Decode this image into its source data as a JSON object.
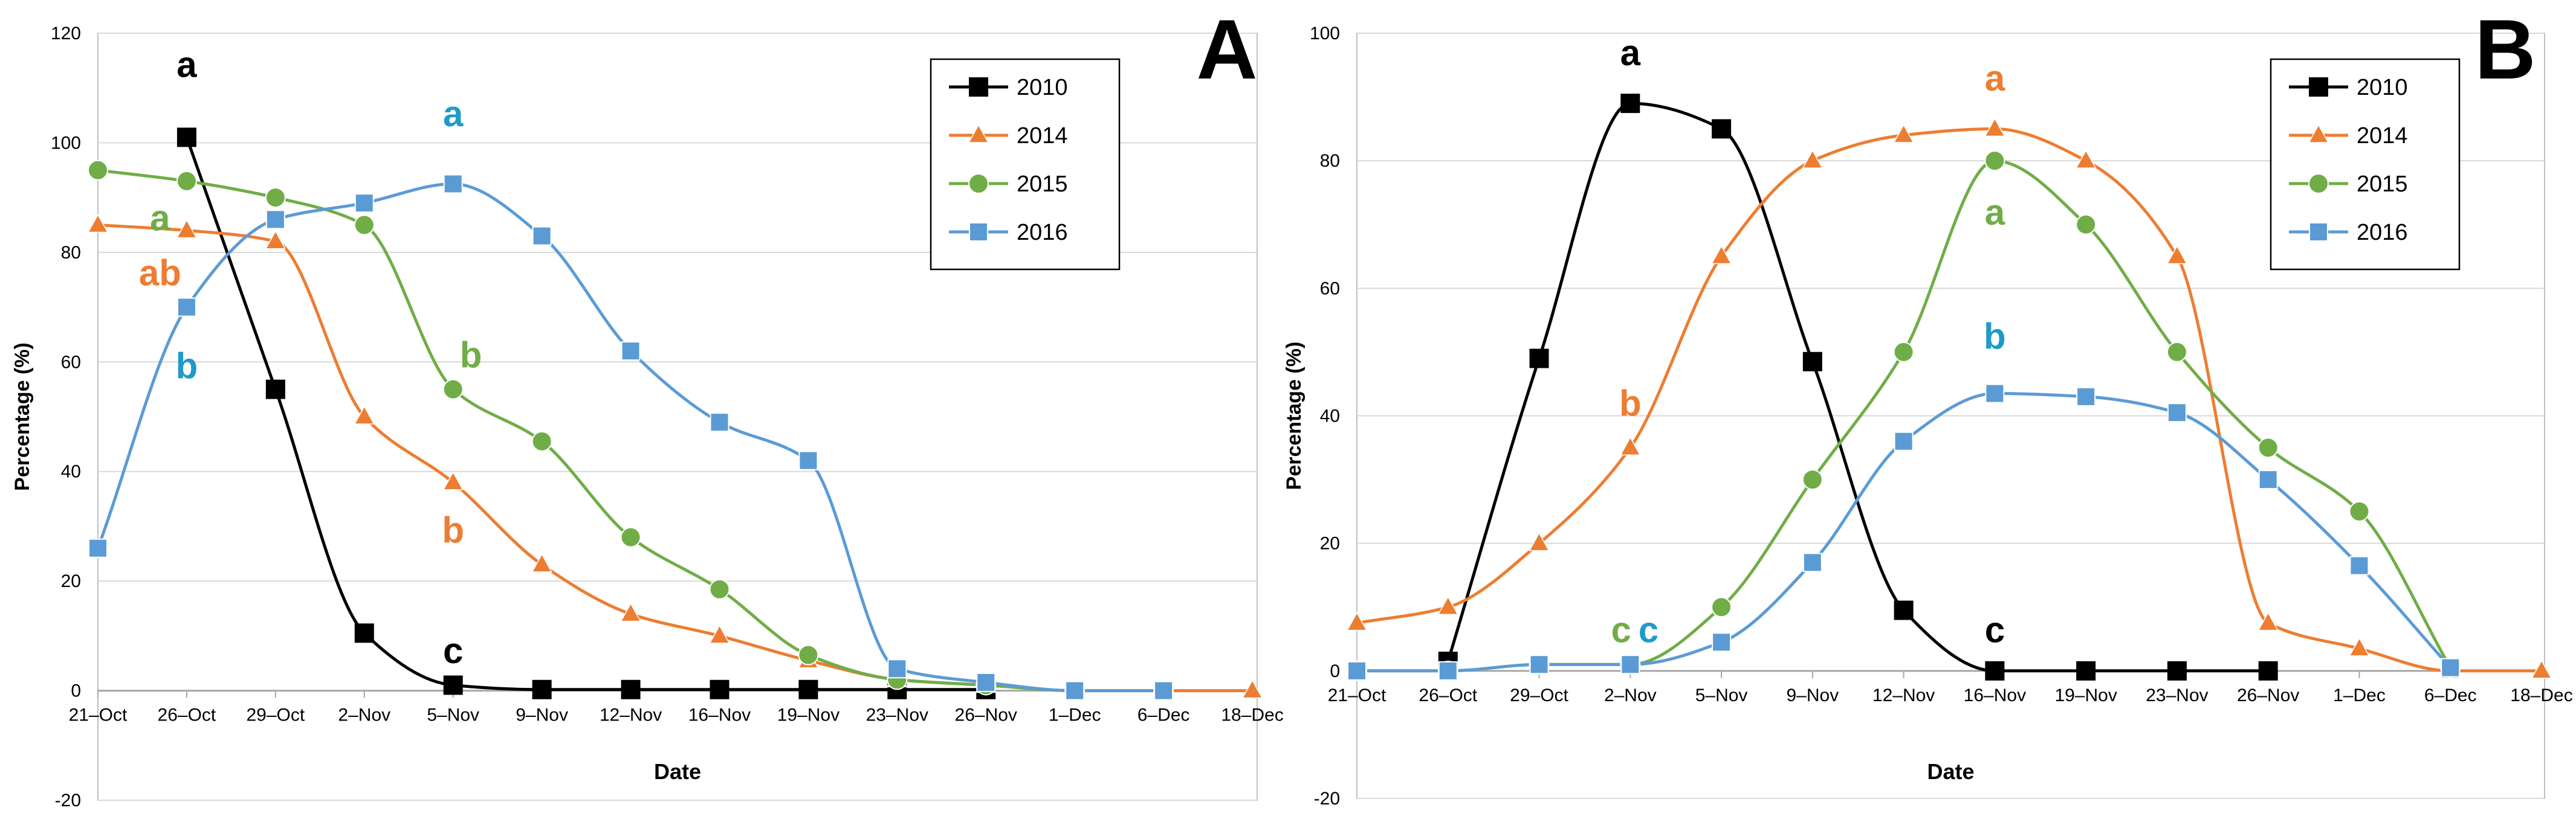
{
  "figure": {
    "panels": [
      "A",
      "B"
    ]
  },
  "chart_data": [
    {
      "type": "line",
      "panel_label": "A",
      "xlabel": "Date",
      "ylabel": "Percentage (%)",
      "ylim": [
        -20,
        120
      ],
      "yticks": [
        -20,
        0,
        20,
        40,
        60,
        80,
        100,
        120
      ],
      "categories": [
        "21–Oct",
        "26–Oct",
        "29–Oct",
        "2–Nov",
        "5–Nov",
        "9–Nov",
        "12–Nov",
        "16–Nov",
        "19–Nov",
        "23–Nov",
        "26–Nov",
        "1–Dec",
        "6–Dec",
        "18–Dec"
      ],
      "legend_position": "top-right",
      "series": [
        {
          "name": "2010",
          "color": "#000000",
          "marker": "square",
          "values": [
            null,
            101,
            55,
            10.5,
            1,
            0.2,
            0.2,
            0.2,
            0.2,
            0.2,
            0.2,
            null,
            null,
            null
          ]
        },
        {
          "name": "2014",
          "color": "#ED7D31",
          "marker": "triangle",
          "values": [
            85,
            84,
            82,
            50,
            38,
            23,
            14,
            10,
            5.5,
            2,
            1,
            0,
            0,
            0
          ]
        },
        {
          "name": "2015",
          "color": "#70AD47",
          "marker": "circle",
          "values": [
            95,
            93,
            90,
            85,
            55,
            45.5,
            28,
            18.5,
            6.5,
            2,
            1,
            0,
            0,
            null
          ]
        },
        {
          "name": "2016",
          "color": "#5B9BD5",
          "marker": "square",
          "values": [
            26,
            70,
            86,
            89,
            92.5,
            83,
            62,
            49,
            42,
            4,
            1.5,
            0,
            0,
            null
          ]
        }
      ],
      "annotations": [
        {
          "text": "a",
          "series": "2010",
          "x_index": 1,
          "y": 112
        },
        {
          "text": "c",
          "series": "2010",
          "x_index": 4,
          "y": 5
        },
        {
          "text": "a",
          "series": "2016",
          "x_index": 4,
          "y": 103
        },
        {
          "text": "b",
          "series": "2016",
          "x_index": 1,
          "y": 57
        },
        {
          "text": "a",
          "series": "2015",
          "x_index": 0.7,
          "y": 84
        },
        {
          "text": "b",
          "series": "2015",
          "x_index": 4.2,
          "y": 59
        },
        {
          "text": "ab",
          "series": "2014",
          "x_index": 0.7,
          "y": 74
        },
        {
          "text": "b",
          "series": "2014",
          "x_index": 4,
          "y": 27
        }
      ]
    },
    {
      "type": "line",
      "panel_label": "B",
      "xlabel": "Date",
      "ylabel": "Percentage (%)",
      "ylim": [
        -20,
        100
      ],
      "yticks": [
        -20,
        0,
        20,
        40,
        60,
        80,
        100
      ],
      "categories": [
        "21–Oct",
        "26–Oct",
        "29–Oct",
        "2–Nov",
        "5–Nov",
        "9–Nov",
        "12–Nov",
        "16–Nov",
        "19–Nov",
        "23–Nov",
        "26–Nov",
        "1–Dec",
        "6–Dec",
        "18–Dec"
      ],
      "legend_position": "top-right",
      "series": [
        {
          "name": "2010",
          "color": "#000000",
          "marker": "square",
          "values": [
            null,
            1.5,
            49,
            89,
            85,
            48.5,
            9.5,
            0,
            0,
            0,
            0,
            null,
            null,
            null
          ]
        },
        {
          "name": "2014",
          "color": "#ED7D31",
          "marker": "triangle",
          "values": [
            7.5,
            10,
            20,
            35,
            65,
            80,
            84,
            85,
            80,
            65,
            7.5,
            3.5,
            0,
            0
          ]
        },
        {
          "name": "2015",
          "color": "#70AD47",
          "marker": "circle",
          "values": [
            0,
            0,
            1,
            1,
            10,
            30,
            50,
            80,
            70,
            50,
            35,
            25,
            0.5,
            null
          ]
        },
        {
          "name": "2016",
          "color": "#5B9BD5",
          "marker": "square",
          "values": [
            0,
            0,
            1,
            1,
            4.5,
            17,
            36,
            43.5,
            43,
            40.5,
            30,
            16.5,
            0.5,
            null
          ]
        }
      ],
      "annotations": [
        {
          "text": "a",
          "series": "2010",
          "x_index": 3,
          "y": 95
        },
        {
          "text": "c",
          "series": "2010",
          "x_index": 7,
          "y": 4.5
        },
        {
          "text": "a",
          "series": "2014",
          "x_index": 7,
          "y": 91
        },
        {
          "text": "b",
          "series": "2014",
          "x_index": 3,
          "y": 40
        },
        {
          "text": "a",
          "series": "2015",
          "x_index": 7,
          "y": 70
        },
        {
          "text": "b",
          "series": "2016",
          "x_index": 7,
          "y": 50.5
        },
        {
          "text": "c",
          "series": "2015",
          "x_index": 2.9,
          "y": 4.5
        },
        {
          "text": "c",
          "series": "2016",
          "x_index": 3.2,
          "y": 4.5
        }
      ]
    }
  ]
}
